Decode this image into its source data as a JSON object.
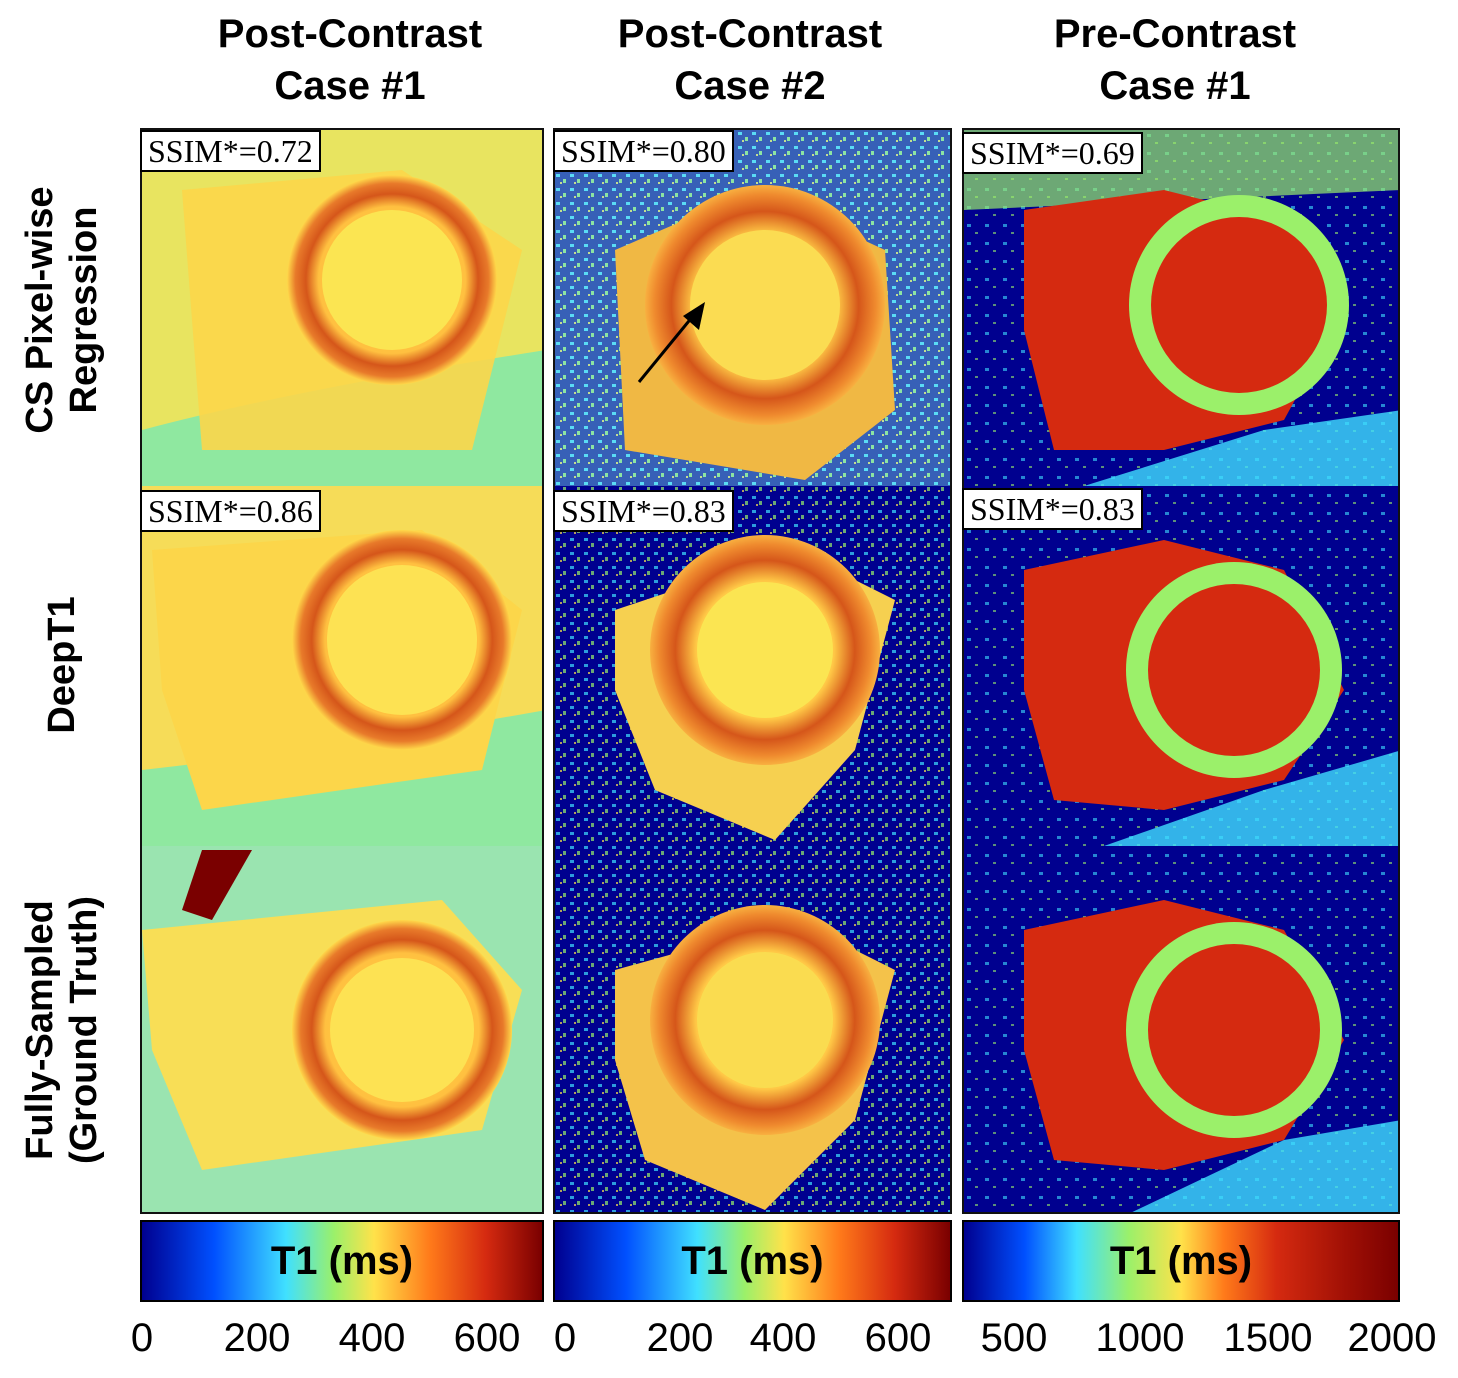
{
  "columns": [
    {
      "title": "Post-Contrast\nCase #1"
    },
    {
      "title": "Post-Contrast\nCase #2"
    },
    {
      "title": "Pre-Contrast\nCase #1"
    }
  ],
  "rows": [
    {
      "label": "CS Pixel-wise\nRegression"
    },
    {
      "label": "DeepT1"
    },
    {
      "label": "Fully-Sampled\n(Ground Truth)"
    }
  ],
  "ssim": [
    [
      "SSIM*=0.72",
      "SSIM*=0.80",
      "SSIM*=0.69"
    ],
    [
      "SSIM*=0.86",
      "SSIM*=0.83",
      "SSIM*=0.83"
    ]
  ],
  "colorbars": [
    {
      "label": "T1 (ms)",
      "ticks": [
        "0",
        "200",
        "400",
        "600"
      ]
    },
    {
      "label": "T1 (ms)",
      "ticks": [
        "0",
        "200",
        "400",
        "600"
      ]
    },
    {
      "label": "T1 (ms)",
      "ticks": [
        "500",
        "1000",
        "1500",
        "2000"
      ]
    }
  ],
  "colors": {
    "jet_dark_blue": "#00008f",
    "jet_blue": "#0050ff",
    "jet_cyan": "#40e0ff",
    "jet_green": "#9bf06a",
    "jet_yellow": "#ffe24a",
    "jet_orange": "#ff7a1a",
    "jet_red": "#d52a10",
    "jet_dark_red": "#7a0000"
  }
}
